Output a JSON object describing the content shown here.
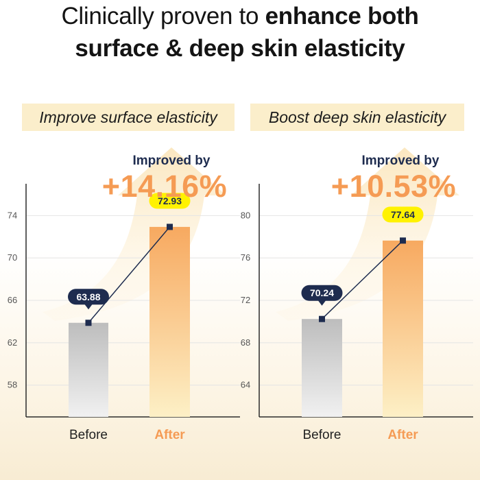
{
  "headline": {
    "line1_normal": "Clinically proven to",
    "line1_bold": "enhance both",
    "line2": "surface & deep skin elasticity"
  },
  "colors": {
    "accent_orange": "#f59b54",
    "navy": "#1e2c4f",
    "label_yellow": "#fff200",
    "subtitle_bg": "#fbeecb"
  },
  "chart_data": [
    {
      "type": "bar",
      "title": "Improve surface elasticity",
      "improvement_label": "Improved by",
      "improvement_value": "+14.16%",
      "categories": [
        "Before",
        "After"
      ],
      "values": [
        63.88,
        72.93
      ],
      "value_labels": [
        "63.88",
        "72.93"
      ],
      "yticks": [
        58,
        62,
        66,
        70,
        74
      ],
      "ylim": [
        55,
        77
      ],
      "grid": true
    },
    {
      "type": "bar",
      "title": "Boost deep skin elasticity",
      "improvement_label": "Improved by",
      "improvement_value": "+10.53%",
      "categories": [
        "Before",
        "After"
      ],
      "values": [
        70.24,
        77.64
      ],
      "value_labels": [
        "70.24",
        "77.64"
      ],
      "yticks": [
        64,
        68,
        72,
        76,
        80
      ],
      "ylim": [
        61,
        83
      ],
      "grid": true
    }
  ]
}
